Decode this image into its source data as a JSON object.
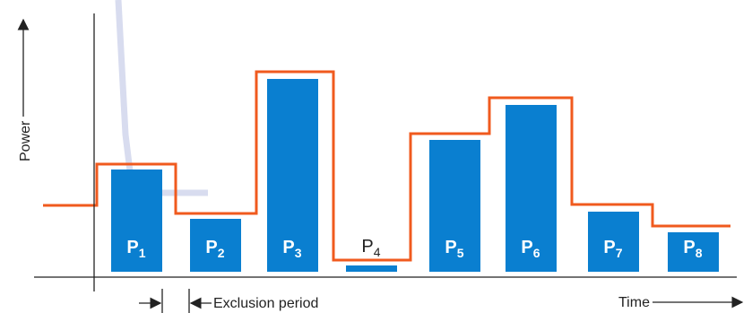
{
  "labels": {
    "y_axis": "Power",
    "x_axis": "Time",
    "exclusion": "Exclusion period"
  },
  "colors": {
    "bar": "#0a7fd0",
    "power_line": "#f05a1e",
    "axis": "#222222",
    "watermark": "#d8dcef"
  },
  "pulses": [
    {
      "base": "P",
      "sub": "1"
    },
    {
      "base": "P",
      "sub": "2"
    },
    {
      "base": "P",
      "sub": "3"
    },
    {
      "base": "P",
      "sub": "4"
    },
    {
      "base": "P",
      "sub": "5"
    },
    {
      "base": "P",
      "sub": "6"
    },
    {
      "base": "P",
      "sub": "7"
    },
    {
      "base": "P",
      "sub": "8"
    }
  ]
}
